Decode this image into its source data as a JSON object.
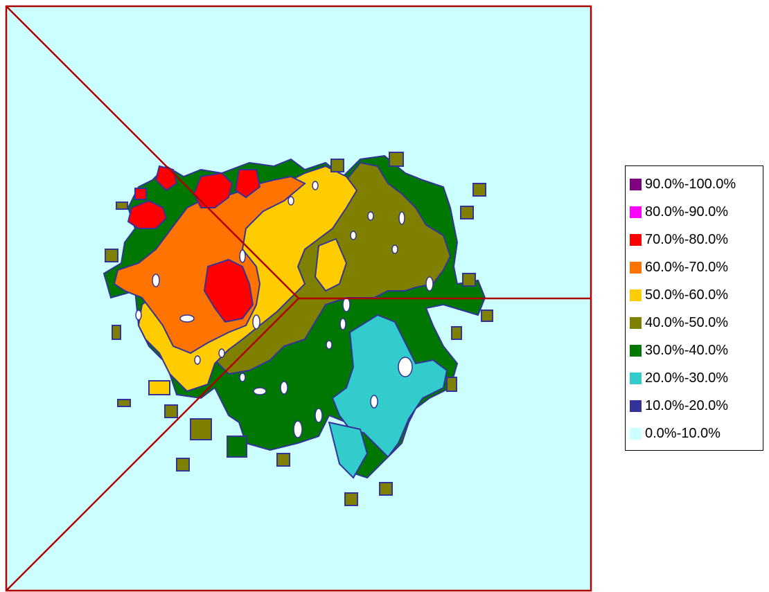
{
  "chart_data": {
    "type": "heatmap",
    "title": "",
    "xlabel": "",
    "ylabel": "",
    "legend_position": "right",
    "frame_color": "#b00000",
    "background_color": "#ccffff",
    "blank_color": "#ffffff",
    "legend": [
      {
        "label": "90.0%-100.0%",
        "color": "#800080"
      },
      {
        "label": "80.0%-90.0%",
        "color": "#ff00ff"
      },
      {
        "label": "70.0%-80.0%",
        "color": "#ff0000"
      },
      {
        "label": "60.0%-70.0%",
        "color": "#ff7300"
      },
      {
        "label": "50.0%-60.0%",
        "color": "#ffcc00"
      },
      {
        "label": "40.0%-50.0%",
        "color": "#808000"
      },
      {
        "label": "30.0%-40.0%",
        "color": "#007800"
      },
      {
        "label": "20.0%-30.0%",
        "color": "#33cccc"
      },
      {
        "label": "10.0%-20.0%",
        "color": "#333399"
      },
      {
        "label": "0.0%-10.0%",
        "color": "#ccffff"
      }
    ]
  }
}
